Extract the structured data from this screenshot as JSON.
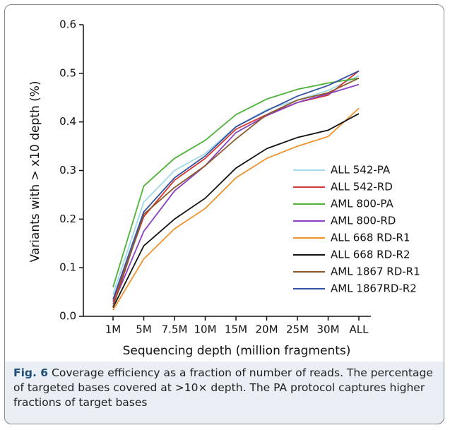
{
  "chart_data": {
    "type": "line",
    "y_label": "Variants with > x10 depth (%)",
    "x_label": "Sequencing depth (million fragments)",
    "categories": [
      "1M",
      "5M",
      "7.5M",
      "10M",
      "15M",
      "20M",
      "25M",
      "30M",
      "ALL"
    ],
    "ylim": [
      0,
      0.6
    ],
    "yticks": [
      {
        "value": 0,
        "label": "0.0"
      },
      0.1,
      0.2,
      0.3,
      0.4,
      0.5,
      0.6
    ],
    "series": [
      {
        "name": "ALL 542-PA",
        "color": "#9fd9ea",
        "values": [
          0.045,
          0.235,
          0.3,
          0.335,
          0.39,
          0.425,
          0.445,
          0.465,
          0.495
        ]
      },
      {
        "name": "ALL 542-RD",
        "color": "#d13a35",
        "values": [
          0.03,
          0.205,
          0.28,
          0.325,
          0.385,
          0.415,
          0.44,
          0.455,
          0.505
        ]
      },
      {
        "name": "AML 800-PA",
        "color": "#4cb236",
        "values": [
          0.06,
          0.268,
          0.325,
          0.362,
          0.415,
          0.447,
          0.467,
          0.48,
          0.49
        ]
      },
      {
        "name": "AML 800-RD",
        "color": "#8b3fc2",
        "values": [
          0.025,
          0.175,
          0.258,
          0.31,
          0.378,
          0.413,
          0.44,
          0.458,
          0.477
        ]
      },
      {
        "name": "ALL 668 RD-R1",
        "color": "#f0922c",
        "values": [
          0.013,
          0.118,
          0.18,
          0.222,
          0.285,
          0.325,
          0.35,
          0.37,
          0.428
        ]
      },
      {
        "name": "ALL 668 RD-R2",
        "color": "#111111",
        "values": [
          0.018,
          0.145,
          0.2,
          0.243,
          0.305,
          0.345,
          0.368,
          0.383,
          0.417
        ]
      },
      {
        "name": "AML 1867 RD-R1",
        "color": "#8b5a2b",
        "values": [
          0.02,
          0.21,
          0.265,
          0.31,
          0.365,
          0.415,
          0.445,
          0.46,
          0.49
        ]
      },
      {
        "name": "AML 1867RD-R2",
        "color": "#3453a3",
        "values": [
          0.035,
          0.215,
          0.285,
          0.33,
          0.39,
          0.423,
          0.453,
          0.475,
          0.505
        ]
      }
    ]
  },
  "caption": {
    "label": "Fig. 6",
    "text": "Coverage efficiency as a fraction of number of reads. The percentage of targeted bases covered at >10× depth. The PA protocol captures higher fractions of target bases"
  }
}
